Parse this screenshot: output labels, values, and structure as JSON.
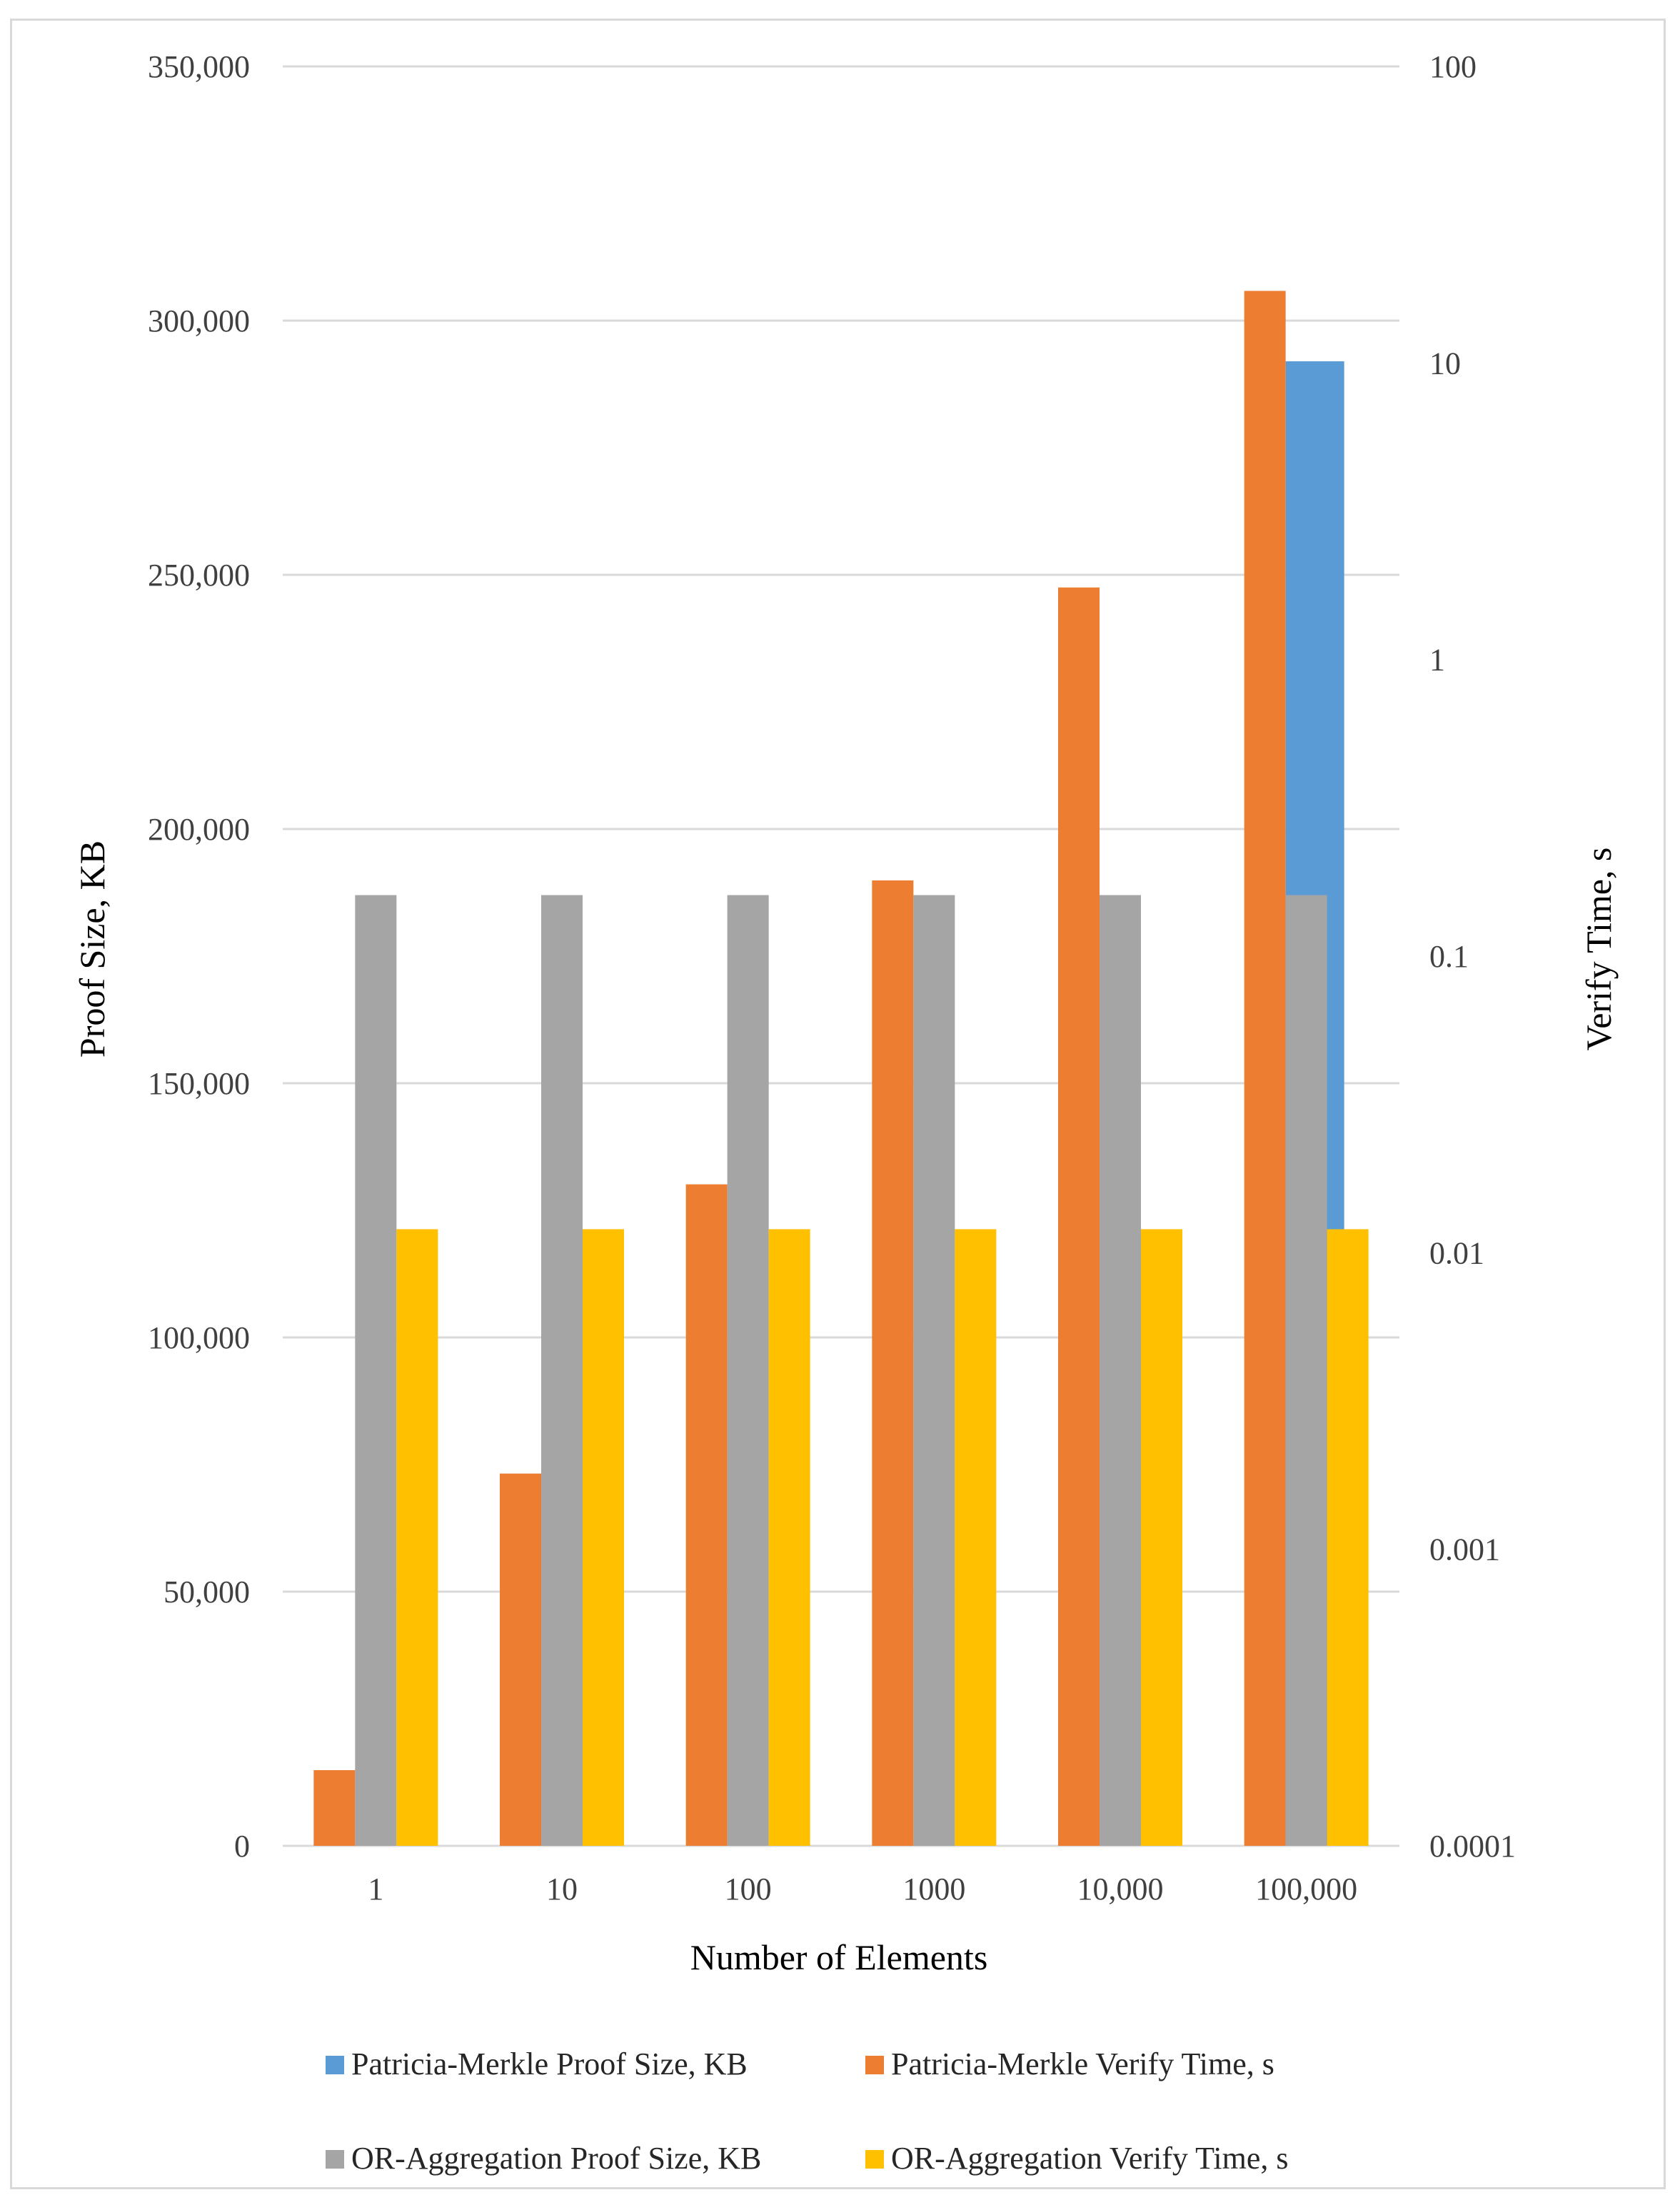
{
  "chart_data": {
    "type": "bar",
    "categories": [
      "1",
      "10",
      "100",
      "1000",
      "10,000",
      "100,000"
    ],
    "xlabel": "Number of Elements",
    "ylabel": "Proof Size, KB",
    "y2label": "Verify Time, s",
    "ylim": [
      0,
      350000
    ],
    "y2lim": [
      0.0001,
      100
    ],
    "y2_scale": "log",
    "y_ticks": [
      "0",
      "50,000",
      "100,000",
      "150,000",
      "200,000",
      "250,000",
      "300,000",
      "350,000"
    ],
    "y2_ticks": [
      "0.0001",
      "0.001",
      "0.01",
      "0.1",
      "1",
      "10",
      "100"
    ],
    "grid": true,
    "legend_position": "bottom",
    "series": [
      {
        "name": "Patricia-Merkle Proof Size, KB",
        "axis": "left",
        "color": "#5b9bd5",
        "values": [
          null,
          null,
          null,
          null,
          null,
          292000
        ]
      },
      {
        "name": "Patricia-Merkle Verify Time, s",
        "axis": "right",
        "color": "#ed7d31",
        "values": [
          0.00018,
          0.0018,
          0.017,
          0.18,
          1.75,
          17.5
        ]
      },
      {
        "name": "OR-Aggregation Proof Size, KB",
        "axis": "left",
        "color": "#a5a5a5",
        "values": [
          187000,
          187000,
          187000,
          187000,
          187000,
          187000
        ]
      },
      {
        "name": "OR-Aggregation Verify Time, s",
        "axis": "right",
        "color": "#ffc000",
        "values": [
          0.012,
          0.012,
          0.012,
          0.012,
          0.012,
          0.012
        ]
      }
    ]
  }
}
